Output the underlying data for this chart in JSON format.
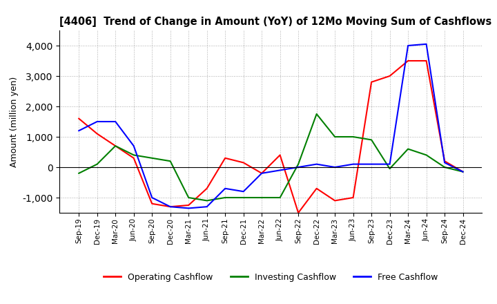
{
  "title": "[4406]  Trend of Change in Amount (YoY) of 12Mo Moving Sum of Cashflows",
  "ylabel": "Amount (million yen)",
  "x_labels": [
    "Sep-19",
    "Dec-19",
    "Mar-20",
    "Jun-20",
    "Sep-20",
    "Dec-20",
    "Mar-21",
    "Jun-21",
    "Sep-21",
    "Dec-21",
    "Mar-22",
    "Jun-22",
    "Sep-22",
    "Dec-22",
    "Mar-23",
    "Jun-23",
    "Sep-23",
    "Dec-23",
    "Mar-24",
    "Jun-24",
    "Sep-24",
    "Dec-24"
  ],
  "operating": [
    1600,
    1100,
    700,
    300,
    -1200,
    -1300,
    -1250,
    -700,
    300,
    150,
    -200,
    400,
    -1500,
    -700,
    -1100,
    -1000,
    2800,
    3000,
    3500,
    3500,
    200,
    -150
  ],
  "investing": [
    -200,
    100,
    700,
    400,
    300,
    200,
    -1000,
    -1100,
    -1000,
    -1000,
    -1000,
    -1000,
    100,
    1750,
    1000,
    1000,
    900,
    -50,
    600,
    400,
    0,
    -150
  ],
  "free": [
    1200,
    1500,
    1500,
    700,
    -1000,
    -1300,
    -1350,
    -1300,
    -700,
    -800,
    -200,
    -100,
    0,
    100,
    0,
    100,
    100,
    100,
    4000,
    4050,
    150,
    -150
  ],
  "operating_color": "#ff0000",
  "investing_color": "#008000",
  "free_color": "#0000ff",
  "ylim": [
    -1500,
    4500
  ],
  "yticks": [
    -1000,
    0,
    1000,
    2000,
    3000,
    4000
  ],
  "grid_color": "#aaaaaa",
  "background_color": "#ffffff"
}
